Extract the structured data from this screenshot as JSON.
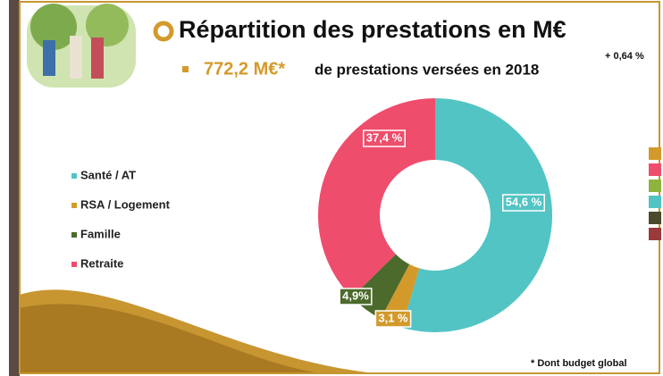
{
  "chart_data": {
    "type": "donut",
    "title": "Répartition des prestations en M€",
    "highlight": "772,2 M€*",
    "subtitle": "de prestations versées en 2018",
    "change": "+ 0,64 %",
    "footnote": "* Dont budget global",
    "categories": [
      "Santé / AT",
      "RSA / Logement",
      "Famille",
      "Retraite"
    ],
    "values": [
      54.6,
      3.1,
      4.9,
      37.4
    ],
    "value_labels": [
      "54,6 %",
      "3,1 %",
      "4,9%",
      "37,4 %"
    ],
    "colors": [
      "#52c4c4",
      "#d39a2b",
      "#4b6a2c",
      "#ef4d6c"
    ]
  }
}
